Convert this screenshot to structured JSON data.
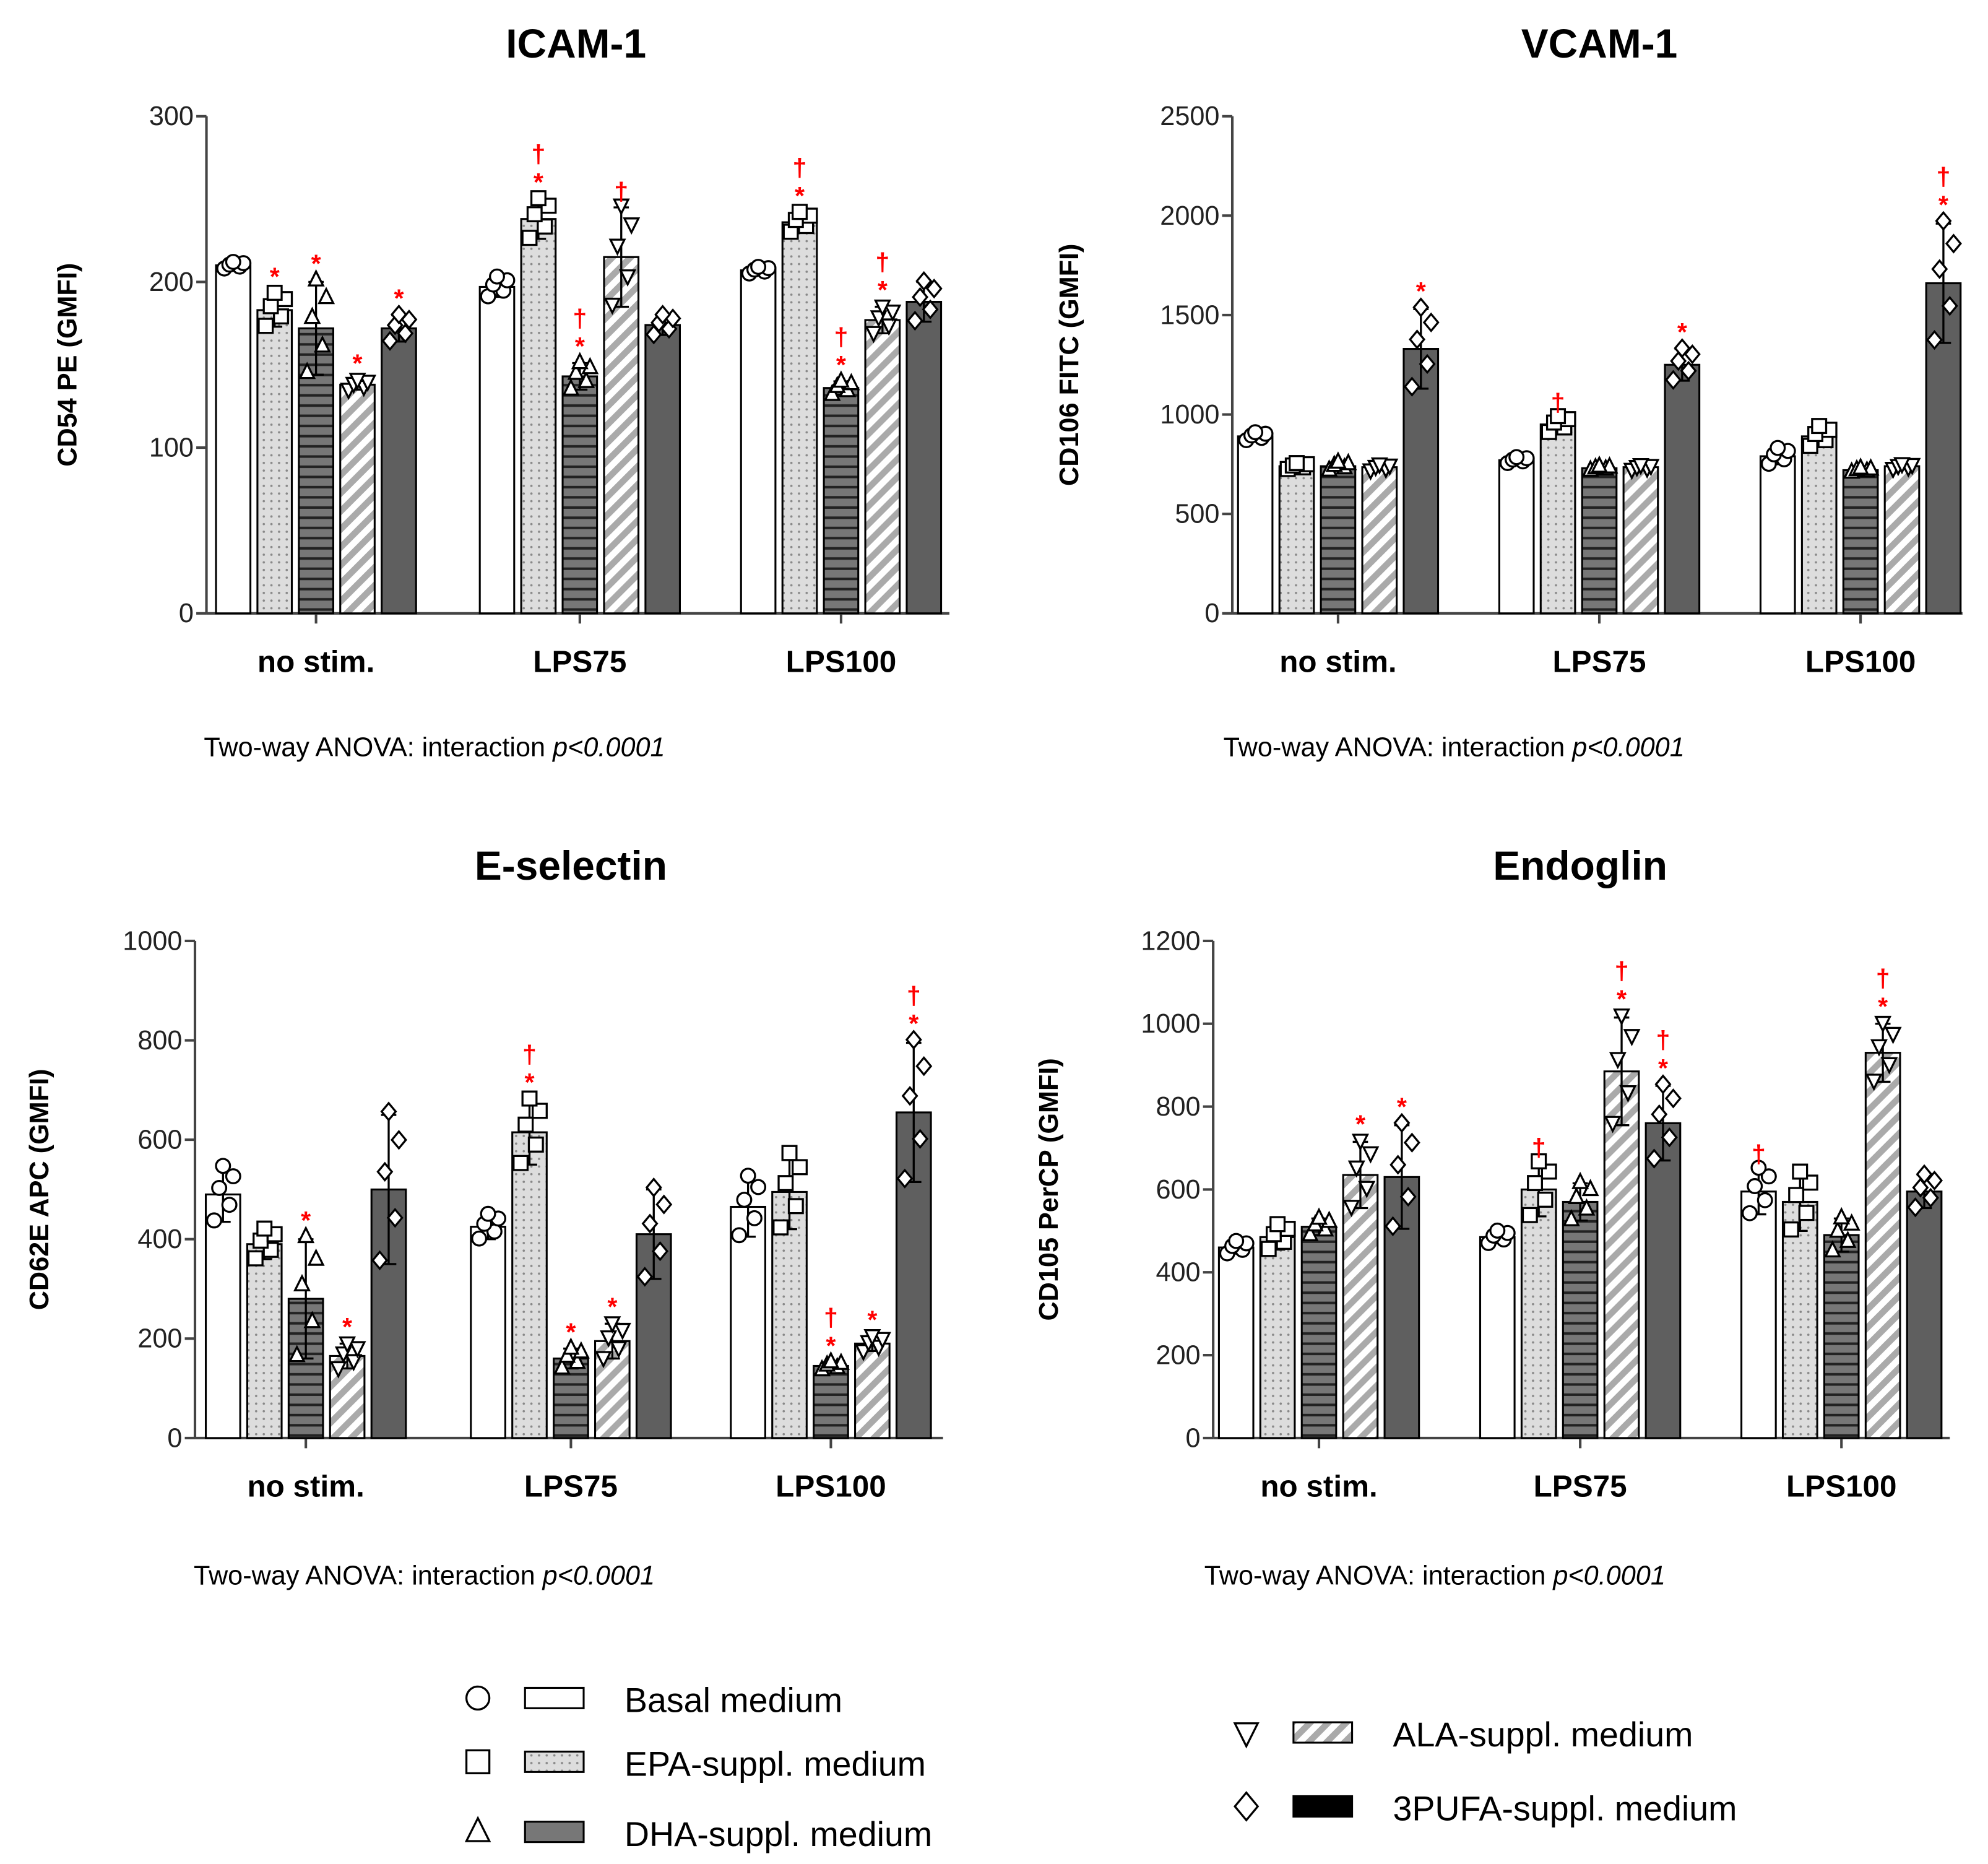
{
  "legend": [
    {
      "label": "Basal medium",
      "marker": "circle",
      "fill": "#ffffff"
    },
    {
      "label": "EPA-suppl. medium",
      "marker": "square",
      "fill": "#dddddd"
    },
    {
      "label": "DHA-suppl. medium",
      "marker": "triangle-up",
      "fill": "#777777"
    },
    {
      "label": "ALA-suppl. medium",
      "marker": "triangle-down",
      "fill": "#aaaaaa"
    },
    {
      "label": "3PUFA-suppl. medium",
      "marker": "diamond",
      "fill": "#000000"
    }
  ],
  "colors": {
    "significance": "#ff0000",
    "bar_3pufa": "#5f5f5f",
    "bar_dha": "#777777",
    "bar_epa": "#dddddd"
  },
  "chart_data": [
    {
      "type": "bar",
      "title": "ICAM-1",
      "ylabel": "CD54 PE (GMFI)",
      "ylim": [
        0,
        300
      ],
      "yticks": [
        0,
        100,
        200,
        300
      ],
      "categories": [
        "no stim.",
        "LPS75",
        "LPS100"
      ],
      "anova": {
        "prefix": "Two-way ANOVA: interaction ",
        "p": "p<0.0001"
      },
      "series": [
        {
          "name": "Basal medium",
          "values": [
            210,
            197,
            207
          ],
          "sd": [
            2,
            6,
            2
          ],
          "sig": [
            "",
            "",
            ""
          ]
        },
        {
          "name": "EPA-suppl. medium",
          "values": [
            183,
            238,
            236
          ],
          "sd": [
            10,
            12,
            6
          ],
          "sig": [
            "*",
            "*†",
            "*†"
          ]
        },
        {
          "name": "DHA-suppl. medium",
          "values": [
            172,
            143,
            136
          ],
          "sd": [
            28,
            8,
            4
          ],
          "sig": [
            "*",
            "*†",
            "*†"
          ]
        },
        {
          "name": "ALA-suppl. medium",
          "values": [
            138,
            215,
            177
          ],
          "sd": [
            3,
            30,
            8
          ],
          "sig": [
            "*",
            "†",
            "*†"
          ]
        },
        {
          "name": "3PUFA-suppl. medium",
          "values": [
            172,
            174,
            188
          ],
          "sd": [
            8,
            6,
            12
          ],
          "sig": [
            "*",
            "",
            ""
          ]
        }
      ]
    },
    {
      "type": "bar",
      "title": "VCAM-1",
      "ylabel": "CD106 FITC (GMFI)",
      "ylim": [
        0,
        2500
      ],
      "yticks": [
        0,
        500,
        1000,
        1500,
        2000,
        2500
      ],
      "categories": [
        "no stim.",
        "LPS75",
        "LPS100"
      ],
      "anova": {
        "prefix": "Two-way ANOVA: interaction ",
        "p": "p<0.0001"
      },
      "series": [
        {
          "name": "Basal medium",
          "values": [
            890,
            770,
            790
          ],
          "sd": [
            20,
            15,
            40
          ],
          "sig": [
            "",
            "",
            ""
          ]
        },
        {
          "name": "EPA-suppl. medium",
          "values": [
            740,
            950,
            890
          ],
          "sd": [
            15,
            40,
            50
          ],
          "sig": [
            "",
            "†",
            ""
          ]
        },
        {
          "name": "DHA-suppl. medium",
          "values": [
            740,
            730,
            720
          ],
          "sd": [
            20,
            10,
            10
          ],
          "sig": [
            "",
            "",
            ""
          ]
        },
        {
          "name": "ALA-suppl. medium",
          "values": [
            735,
            735,
            740
          ],
          "sd": [
            15,
            12,
            12
          ],
          "sig": [
            "",
            "",
            ""
          ]
        },
        {
          "name": "3PUFA-suppl. medium",
          "values": [
            1330,
            1250,
            1660
          ],
          "sd": [
            200,
            80,
            300
          ],
          "sig": [
            "*",
            "*",
            "*†"
          ]
        }
      ]
    },
    {
      "type": "bar",
      "title": "E-selectin",
      "ylabel": "CD62E APC (GMFI)",
      "ylim": [
        0,
        1000
      ],
      "yticks": [
        0,
        200,
        400,
        600,
        800,
        1000
      ],
      "categories": [
        "no stim.",
        "LPS75",
        "LPS100"
      ],
      "anova": {
        "prefix": "Two-way ANOVA: interaction ",
        "p": "p<0.0001"
      },
      "series": [
        {
          "name": "Basal medium",
          "values": [
            490,
            425,
            465
          ],
          "sd": [
            55,
            25,
            60
          ],
          "sig": [
            "",
            "",
            ""
          ]
        },
        {
          "name": "EPA-suppl. medium",
          "values": [
            390,
            615,
            495
          ],
          "sd": [
            30,
            65,
            75
          ],
          "sig": [
            "",
            "*†",
            ""
          ]
        },
        {
          "name": "DHA-suppl. medium",
          "values": [
            280,
            160,
            145
          ],
          "sd": [
            120,
            20,
            8
          ],
          "sig": [
            "*",
            "*",
            "*†"
          ]
        },
        {
          "name": "ALA-suppl. medium",
          "values": [
            165,
            195,
            190
          ],
          "sd": [
            25,
            35,
            15
          ],
          "sig": [
            "*",
            "*",
            "*"
          ]
        },
        {
          "name": "3PUFA-suppl. medium",
          "values": [
            500,
            410,
            655
          ],
          "sd": [
            150,
            90,
            140
          ],
          "sig": [
            "",
            "",
            "*†"
          ]
        }
      ]
    },
    {
      "type": "bar",
      "title": "Endoglin",
      "ylabel": "CD105 PerCP (GMFI)",
      "ylim": [
        0,
        1200
      ],
      "yticks": [
        0,
        200,
        400,
        600,
        800,
        1000,
        1200
      ],
      "categories": [
        "no stim.",
        "LPS75",
        "LPS100"
      ],
      "anova": {
        "prefix": "Two-way ANOVA: interaction ",
        "p": "p<0.0001"
      },
      "series": [
        {
          "name": "Basal medium",
          "values": [
            460,
            485,
            595
          ],
          "sd": [
            15,
            15,
            55
          ],
          "sig": [
            "",
            "",
            "†"
          ]
        },
        {
          "name": "EPA-suppl. medium",
          "values": [
            485,
            600,
            570
          ],
          "sd": [
            30,
            65,
            70
          ],
          "sig": [
            "",
            "†",
            ""
          ]
        },
        {
          "name": "DHA-suppl. medium",
          "values": [
            510,
            570,
            490
          ],
          "sd": [
            20,
            45,
            40
          ],
          "sig": [
            "",
            "",
            ""
          ]
        },
        {
          "name": "ALA-suppl. medium",
          "values": [
            635,
            885,
            930
          ],
          "sd": [
            80,
            130,
            70
          ],
          "sig": [
            "*",
            "*†",
            "*†"
          ]
        },
        {
          "name": "3PUFA-suppl. medium",
          "values": [
            630,
            760,
            595
          ],
          "sd": [
            125,
            90,
            40
          ],
          "sig": [
            "*",
            "*†",
            ""
          ]
        }
      ]
    }
  ]
}
